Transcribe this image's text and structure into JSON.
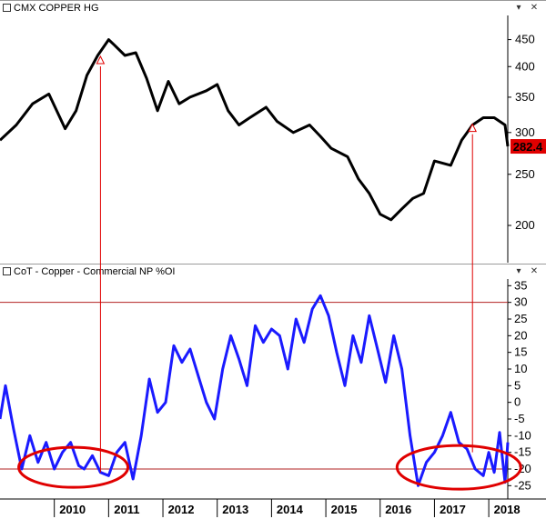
{
  "chart_data": [
    {
      "type": "line",
      "title": "CMX COPPER HG",
      "price_label": "282.4",
      "y_scale": "log",
      "ylim": [
        170,
        500
      ],
      "y_ticks": [
        200,
        250,
        300,
        350,
        400,
        450
      ],
      "series": [
        {
          "name": "CMX COPPER HG",
          "color": "#000000",
          "x": [
            2009.0,
            2009.3,
            2009.6,
            2009.9,
            2010.2,
            2010.4,
            2010.6,
            2010.8,
            2011.0,
            2011.1,
            2011.3,
            2011.5,
            2011.7,
            2011.9,
            2012.1,
            2012.3,
            2012.5,
            2012.8,
            2013.0,
            2013.2,
            2013.4,
            2013.6,
            2013.9,
            2014.1,
            2014.4,
            2014.7,
            2014.9,
            2015.1,
            2015.4,
            2015.6,
            2015.8,
            2016.0,
            2016.2,
            2016.4,
            2016.6,
            2016.8,
            2017.0,
            2017.3,
            2017.5,
            2017.7,
            2017.9,
            2018.1,
            2018.3,
            2018.35
          ],
          "values": [
            290,
            310,
            340,
            355,
            305,
            330,
            385,
            420,
            450,
            440,
            420,
            425,
            380,
            330,
            375,
            340,
            350,
            360,
            370,
            330,
            310,
            320,
            335,
            315,
            300,
            310,
            295,
            280,
            270,
            245,
            230,
            210,
            205,
            215,
            225,
            230,
            265,
            260,
            290,
            310,
            320,
            320,
            310,
            282.4
          ]
        }
      ],
      "markers": [
        {
          "x": 2010.85,
          "y": 410
        },
        {
          "x": 2017.7,
          "y": 305
        }
      ]
    },
    {
      "type": "line",
      "title": "CoT - Copper - Commercial NP %OI",
      "ylim": [
        -29,
        37
      ],
      "y_ticks": [
        -25,
        -20,
        -15,
        -10,
        -5,
        0,
        5,
        10,
        15,
        20,
        25,
        30,
        35
      ],
      "reference_lines": [
        30,
        -20
      ],
      "x_ticks": [
        "2010",
        "2011",
        "2012",
        "2013",
        "2014",
        "2015",
        "2016",
        "2017",
        "2018"
      ],
      "x_tick_values": [
        2010.0,
        2011.0,
        2012.0,
        2013.0,
        2014.0,
        2015.0,
        2016.0,
        2017.0,
        2018.0
      ],
      "xlim": [
        2009.0,
        2018.35
      ],
      "series": [
        {
          "name": "CoT - Copper - Commercial NP %OI",
          "color": "#1a1aff",
          "x": [
            2009.0,
            2009.1,
            2009.25,
            2009.4,
            2009.55,
            2009.7,
            2009.85,
            2010.0,
            2010.15,
            2010.3,
            2010.45,
            2010.55,
            2010.7,
            2010.85,
            2011.0,
            2011.15,
            2011.3,
            2011.45,
            2011.6,
            2011.75,
            2011.9,
            2012.05,
            2012.2,
            2012.35,
            2012.5,
            2012.65,
            2012.8,
            2012.95,
            2013.1,
            2013.25,
            2013.4,
            2013.55,
            2013.7,
            2013.85,
            2014.0,
            2014.15,
            2014.3,
            2014.45,
            2014.6,
            2014.75,
            2014.9,
            2015.05,
            2015.2,
            2015.35,
            2015.5,
            2015.65,
            2015.8,
            2015.95,
            2016.1,
            2016.25,
            2016.4,
            2016.55,
            2016.7,
            2016.85,
            2017.0,
            2017.15,
            2017.3,
            2017.45,
            2017.6,
            2017.75,
            2017.9,
            2018.0,
            2018.1,
            2018.2,
            2018.3,
            2018.35
          ],
          "values": [
            -5,
            5,
            -8,
            -20,
            -10,
            -18,
            -12,
            -20,
            -15,
            -12,
            -19,
            -20,
            -16,
            -21,
            -22,
            -15,
            -12,
            -23,
            -10,
            7,
            -3,
            0,
            17,
            12,
            16,
            8,
            0,
            -5,
            10,
            20,
            13,
            5,
            23,
            18,
            22,
            20,
            10,
            25,
            18,
            28,
            32,
            26,
            15,
            5,
            20,
            12,
            26,
            16,
            6,
            20,
            10,
            -10,
            -25,
            -18,
            -15,
            -10,
            -3,
            -12,
            -14,
            -20,
            -22,
            -15,
            -21,
            -9,
            -24,
            -12
          ]
        }
      ],
      "markers": [
        {
          "x": 2010.85,
          "y": -21
        },
        {
          "x": 2017.7,
          "y": -15
        }
      ]
    }
  ]
}
